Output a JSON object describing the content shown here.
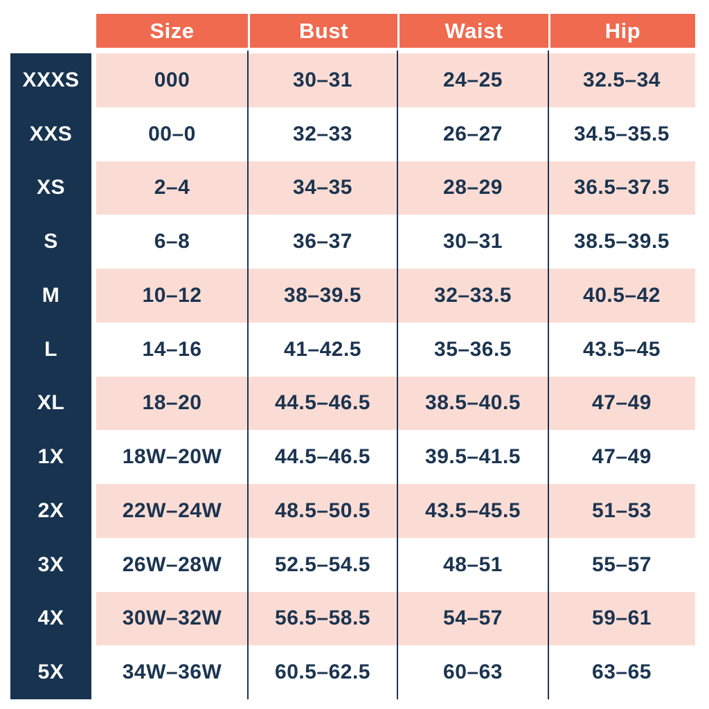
{
  "colors": {
    "header_bg": "#EF6A4F",
    "header_text": "#FFFFFF",
    "label_column_bg": "#17334F",
    "label_text": "#FFFFFF",
    "row_alt_bg": "#FBDCD4",
    "row_bg": "#FFFFFF",
    "body_text": "#1B3450",
    "divider": "#1B3450"
  },
  "chart_data": {
    "type": "table",
    "columns": [
      "Size",
      "Bust",
      "Waist",
      "Hip"
    ],
    "rows": [
      {
        "label": "XXXS",
        "size": "000",
        "bust": "30–31",
        "waist": "24–25",
        "hip": "32.5–34"
      },
      {
        "label": "XXS",
        "size": "00–0",
        "bust": "32–33",
        "waist": "26–27",
        "hip": "34.5–35.5"
      },
      {
        "label": "XS",
        "size": "2–4",
        "bust": "34–35",
        "waist": "28–29",
        "hip": "36.5–37.5"
      },
      {
        "label": "S",
        "size": "6–8",
        "bust": "36–37",
        "waist": "30–31",
        "hip": "38.5–39.5"
      },
      {
        "label": "M",
        "size": "10–12",
        "bust": "38–39.5",
        "waist": "32–33.5",
        "hip": "40.5–42"
      },
      {
        "label": "L",
        "size": "14–16",
        "bust": "41–42.5",
        "waist": "35–36.5",
        "hip": "43.5–45"
      },
      {
        "label": "XL",
        "size": "18–20",
        "bust": "44.5–46.5",
        "waist": "38.5–40.5",
        "hip": "47–49"
      },
      {
        "label": "1X",
        "size": "18W–20W",
        "bust": "44.5–46.5",
        "waist": "39.5–41.5",
        "hip": "47–49"
      },
      {
        "label": "2X",
        "size": "22W–24W",
        "bust": "48.5–50.5",
        "waist": "43.5–45.5",
        "hip": "51–53"
      },
      {
        "label": "3X",
        "size": "26W–28W",
        "bust": "52.5–54.5",
        "waist": "48–51",
        "hip": "55–57"
      },
      {
        "label": "4X",
        "size": "30W–32W",
        "bust": "56.5–58.5",
        "waist": "54–57",
        "hip": "59–61"
      },
      {
        "label": "5X",
        "size": "34W–36W",
        "bust": "60.5–62.5",
        "waist": "60–63",
        "hip": "63–65"
      }
    ]
  }
}
